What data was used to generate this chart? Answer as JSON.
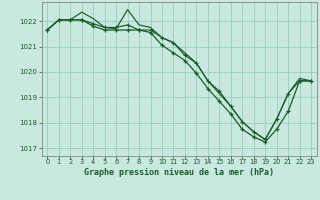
{
  "title": "Graphe pression niveau de la mer (hPa)",
  "bg_color": "#c8e8e0",
  "grid_color": "#99ccbb",
  "line_color": "#1a5c28",
  "ylim": [
    1016.7,
    1022.75
  ],
  "xlim": [
    -0.5,
    23.5
  ],
  "yticks": [
    1017,
    1018,
    1019,
    1020,
    1021,
    1022
  ],
  "xticks": [
    0,
    1,
    2,
    3,
    4,
    5,
    6,
    7,
    8,
    9,
    10,
    11,
    12,
    13,
    14,
    15,
    16,
    17,
    18,
    19,
    20,
    21,
    22,
    23
  ],
  "series_steep": [
    1021.65,
    1022.05,
    1022.05,
    1022.05,
    1021.8,
    1021.65,
    1021.65,
    1021.65,
    1021.65,
    1021.55,
    1021.05,
    1020.75,
    1020.45,
    1019.95,
    1019.35,
    1018.85,
    1018.35,
    1017.75,
    1017.45,
    1017.25,
    1017.75,
    1018.45,
    1019.65,
    1019.65
  ],
  "series_upper": [
    1021.65,
    1022.05,
    1022.05,
    1022.05,
    1021.9,
    1021.75,
    1021.75,
    1021.85,
    1021.65,
    1021.65,
    1021.35,
    1021.15,
    1020.65,
    1020.35,
    1019.65,
    1019.25,
    1018.65,
    1018.05,
    1017.65,
    1017.35,
    1018.15,
    1019.15,
    1019.65,
    1019.65
  ],
  "series_peak": [
    1021.65,
    1022.05,
    1022.05,
    1022.35,
    1022.1,
    1021.75,
    1021.7,
    1022.45,
    1021.85,
    1021.75,
    1021.35,
    1021.15,
    1020.75,
    1020.35,
    1019.65,
    1019.15,
    1018.65,
    1018.05,
    1017.65,
    1017.35,
    1018.15,
    1019.15,
    1019.75,
    1019.65
  ]
}
